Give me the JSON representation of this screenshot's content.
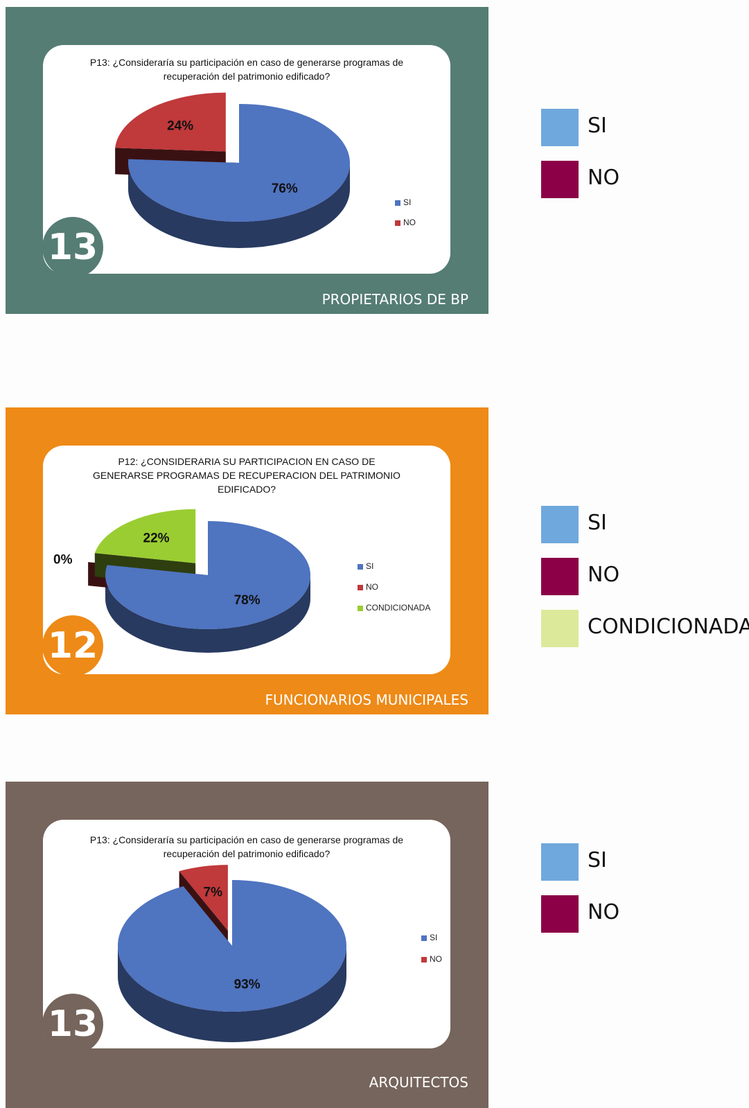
{
  "chart_data": [
    {
      "type": "pie",
      "title": "P13: ¿Consideraría su participación en caso de generarse programas de recuperación del patrimonio edificado?",
      "categories": [
        "SI",
        "NO"
      ],
      "values": [
        76,
        24
      ],
      "value_labels": [
        "76%",
        "24%"
      ],
      "colors": [
        "#4f74c0",
        "#c0393b"
      ],
      "legend_colors": [
        "#6fa8dc",
        "#8b0046"
      ],
      "explode": [
        false,
        true
      ],
      "badge": "13",
      "caption": "PROPIETARIOS DE BP",
      "panel_color": "#557d74"
    },
    {
      "type": "pie",
      "title": "P12: ¿CONSIDERARIA SU PARTICIPACION EN CASO DE GENERARSE PROGRAMAS DE RECUPERACION DEL PATRIMONIO EDIFICADO?",
      "categories": [
        "SI",
        "NO",
        "CONDICIONADA"
      ],
      "values": [
        78,
        0,
        22
      ],
      "value_labels": [
        "78%",
        "0%",
        "22%"
      ],
      "colors": [
        "#4f74c0",
        "#c0393b",
        "#9acd32"
      ],
      "legend_colors": [
        "#6fa8dc",
        "#8b0046",
        "#dde99a"
      ],
      "explode": [
        false,
        true,
        true
      ],
      "badge": "12",
      "caption": "FUNCIONARIOS MUNICIPALES",
      "panel_color": "#ee8a17"
    },
    {
      "type": "pie",
      "title": "P13: ¿Consideraría su participación en caso de generarse programas de recuperación del patrimonio edificado?",
      "categories": [
        "SI",
        "NO"
      ],
      "values": [
        93,
        7
      ],
      "value_labels": [
        "93%",
        "7%"
      ],
      "colors": [
        "#4f74c0",
        "#c0393b"
      ],
      "legend_colors": [
        "#6fa8dc",
        "#8b0046"
      ],
      "explode": [
        false,
        true
      ],
      "badge": "13",
      "caption": "ARQUITECTOS",
      "panel_color": "#76655c"
    }
  ]
}
